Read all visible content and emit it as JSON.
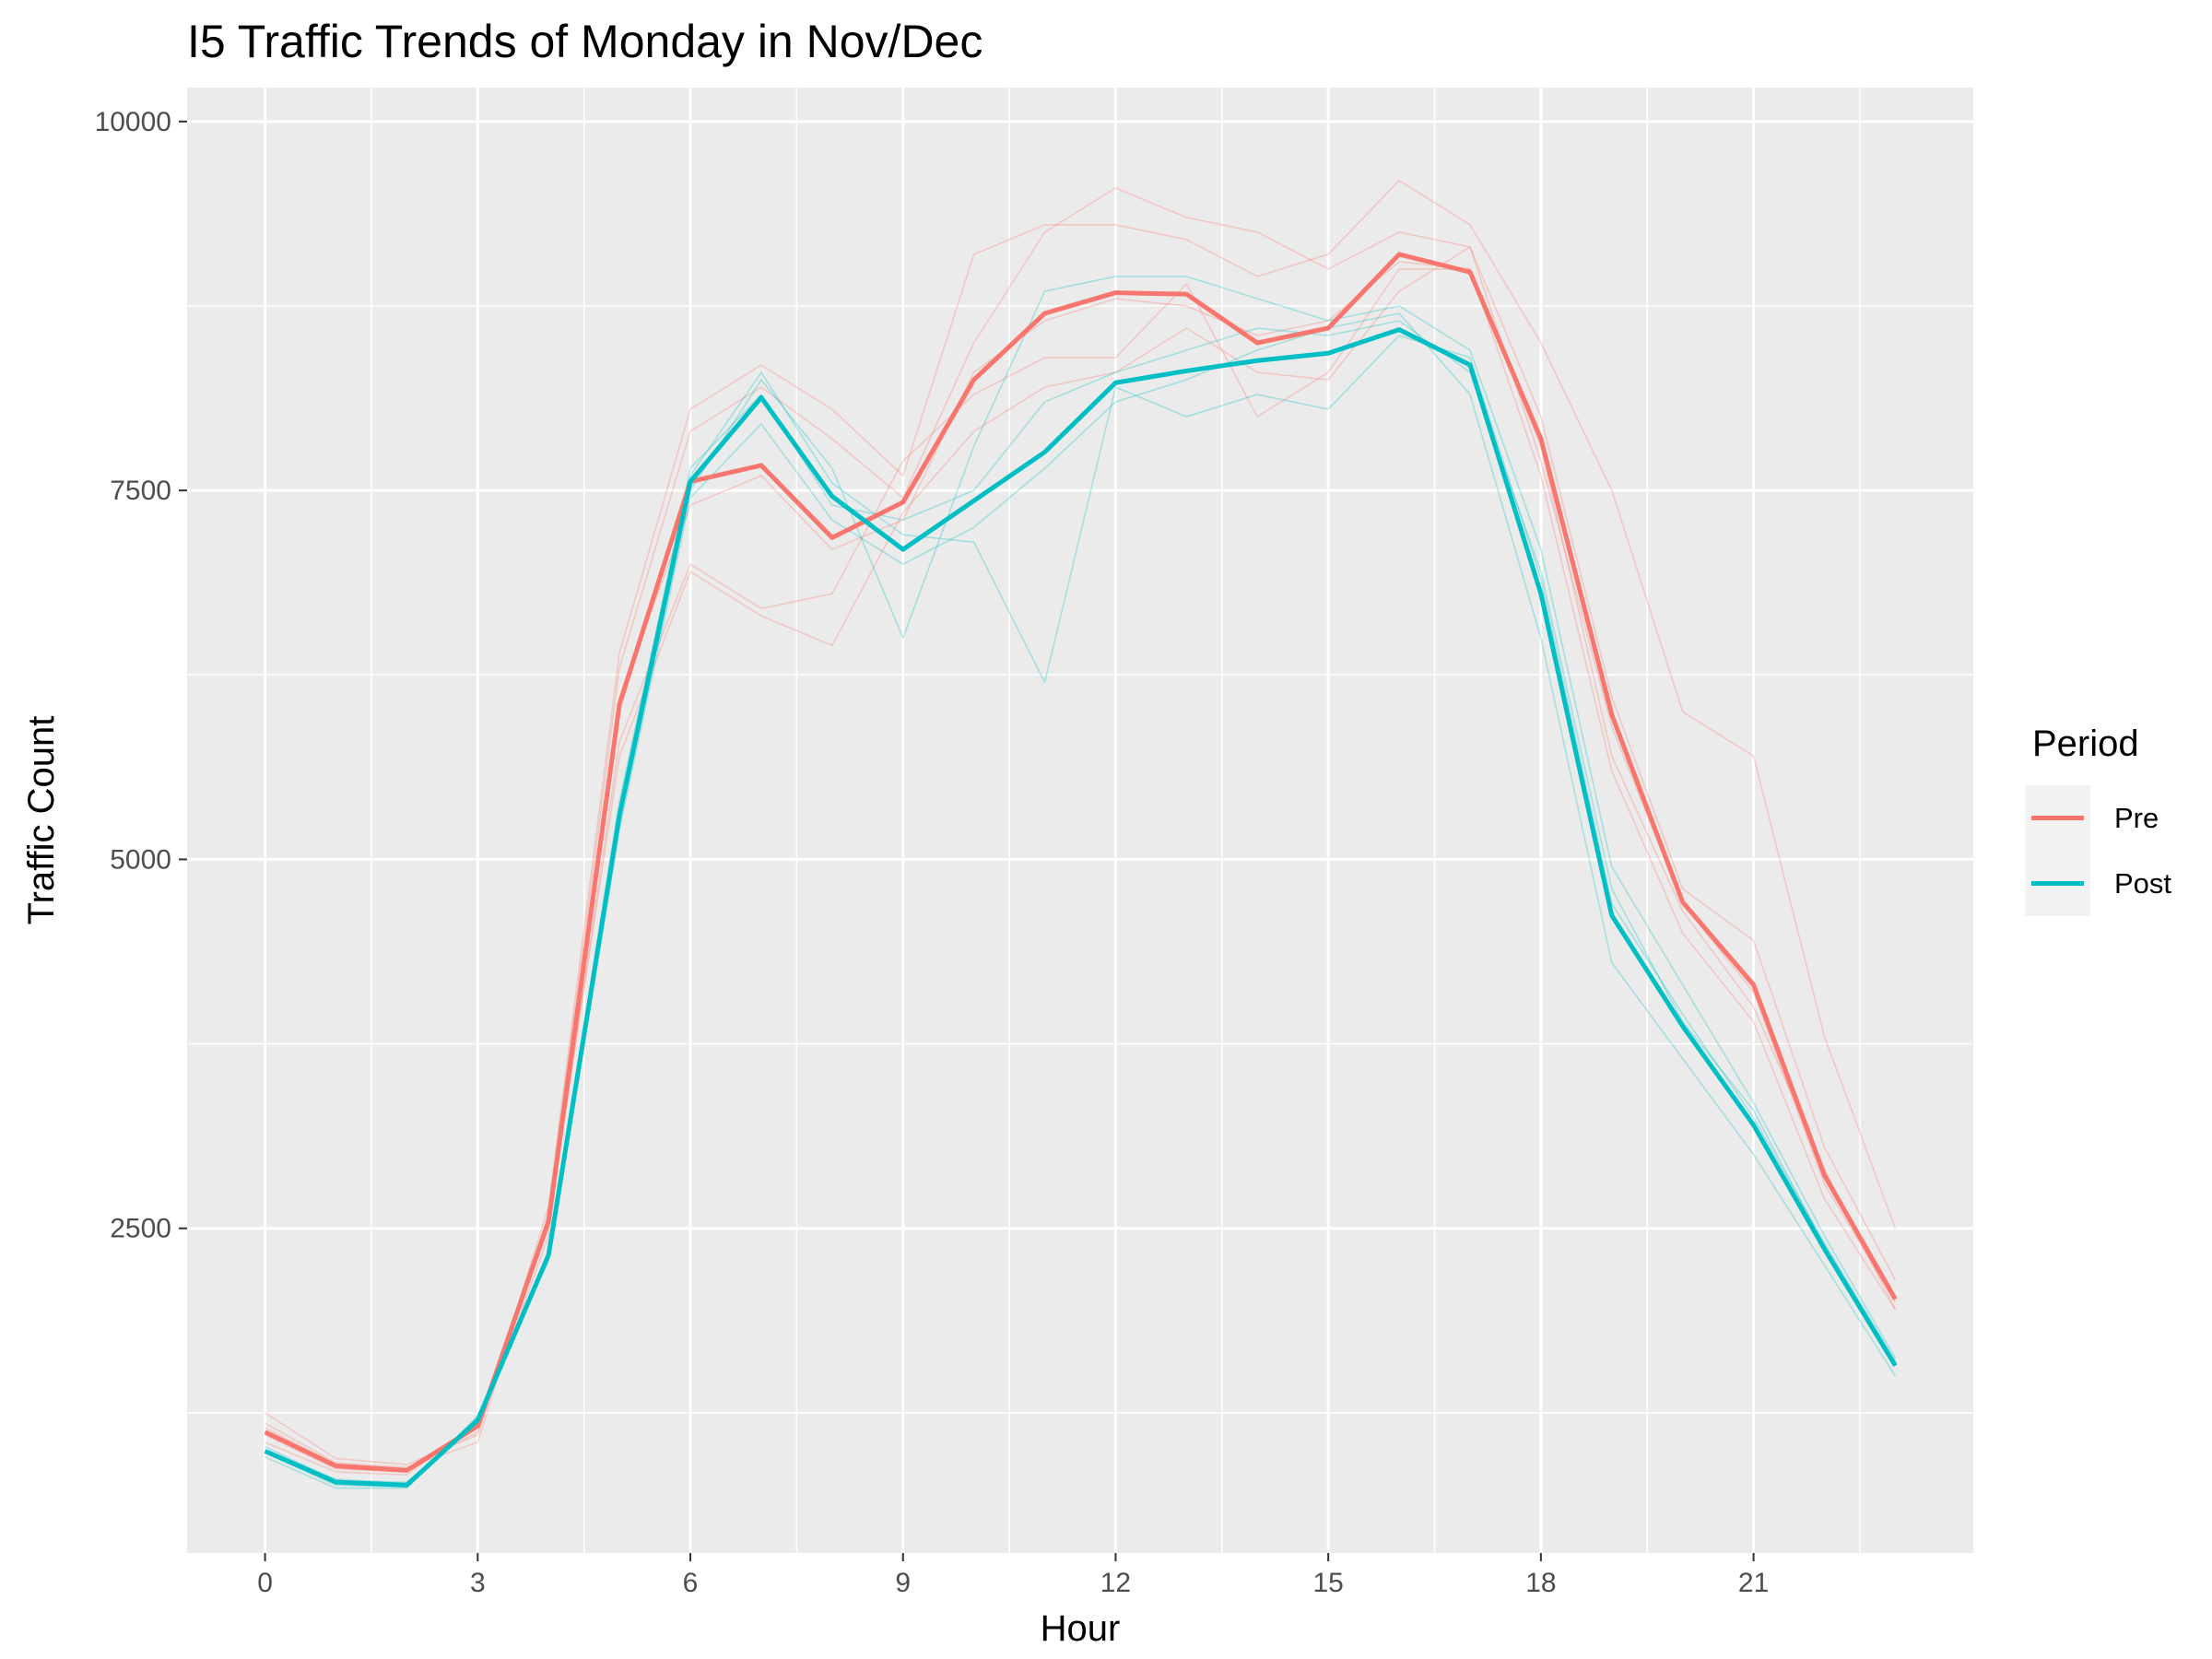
{
  "chart_data": {
    "type": "line",
    "title": "I5 Traffic Trends of Monday in Nov/Dec",
    "xlabel": "Hour",
    "ylabel": "Traffic Count",
    "xlim": [
      -1.1,
      24.1
    ],
    "ylim": [
      300,
      10230
    ],
    "x_ticks": [
      0,
      3,
      6,
      9,
      12,
      15,
      18,
      21
    ],
    "x_tick_labels": [
      "0",
      "3",
      "6",
      "9",
      "12",
      "15",
      "18",
      "21"
    ],
    "y_ticks": [
      2500,
      5000,
      7500,
      10000
    ],
    "y_tick_labels": [
      "2500",
      "5000",
      "7500",
      "10000"
    ],
    "grid": true,
    "legend": {
      "title": "Period",
      "position": "right"
    },
    "x": [
      0,
      1,
      2,
      3,
      4,
      5,
      6,
      7,
      8,
      9,
      10,
      11,
      12,
      13,
      14,
      15,
      16,
      17,
      18,
      19,
      20,
      21,
      22,
      23
    ],
    "series": [
      {
        "name": "Pre",
        "color": "#F8766D",
        "values": [
          1120,
          890,
          860,
          1160,
          2550,
          6050,
          7560,
          7670,
          7180,
          7420,
          8250,
          8700,
          8840,
          8830,
          8500,
          8600,
          9100,
          8980,
          7850,
          5980,
          4710,
          4150,
          2860,
          2020
        ]
      },
      {
        "name": "Post",
        "color": "#00BFC4",
        "values": [
          990,
          780,
          760,
          1200,
          2320,
          5300,
          7560,
          8130,
          7460,
          7100,
          7430,
          7760,
          8230,
          8310,
          8380,
          8430,
          8590,
          8350,
          6800,
          4620,
          3870,
          3200,
          2360,
          1570
        ]
      }
    ],
    "background_traces": [
      {
        "period": "Pre",
        "values": [
          1250,
          940,
          900,
          1100,
          2650,
          6400,
          8050,
          8350,
          8050,
          7600,
          9100,
          9300,
          9300,
          9200,
          8950,
          9100,
          9600,
          9300,
          8500,
          7500,
          6000,
          5700,
          3800,
          2500
        ]
      },
      {
        "period": "Pre",
        "values": [
          1180,
          910,
          880,
          1050,
          2600,
          6300,
          7900,
          8200,
          7850,
          7450,
          8500,
          9250,
          9550,
          9350,
          9250,
          9000,
          9250,
          9150,
          8000,
          6100,
          4800,
          4450,
          3050,
          2150
        ]
      },
      {
        "period": "Pre",
        "values": [
          1050,
          850,
          830,
          1180,
          2500,
          5800,
          7000,
          6700,
          6800,
          7700,
          8150,
          8400,
          8400,
          8900,
          8000,
          8300,
          9000,
          9000,
          7600,
          5600,
          4500,
          3900,
          2700,
          1950
        ]
      },
      {
        "period": "Pre",
        "values": [
          1100,
          870,
          850,
          1150,
          2550,
          5700,
          6950,
          6650,
          6450,
          7350,
          7900,
          8200,
          8300,
          8600,
          8300,
          8250,
          8850,
          9150,
          7700,
          5900,
          4700,
          4100,
          2800,
          2000
        ]
      },
      {
        "period": "Pre",
        "values": [
          1150,
          900,
          870,
          1120,
          2450,
          6100,
          7400,
          7600,
          7100,
          7300,
          8300,
          8650,
          8800,
          8750,
          8550,
          8650,
          9050,
          9000,
          7800,
          5700,
          4650,
          4000,
          2900,
          1950
        ]
      },
      {
        "period": "Post",
        "values": [
          980,
          760,
          750,
          1220,
          2300,
          5250,
          7500,
          8250,
          7650,
          6500,
          7800,
          8850,
          8950,
          8950,
          8800,
          8650,
          8750,
          8450,
          7100,
          4950,
          4150,
          3350,
          2450,
          1620
        ]
      },
      {
        "period": "Post",
        "values": [
          1000,
          800,
          770,
          1180,
          2350,
          5400,
          7600,
          8300,
          7550,
          7200,
          7150,
          6200,
          8200,
          8000,
          8150,
          8050,
          8550,
          8400,
          6900,
          4700,
          3950,
          3250,
          2400,
          1600
        ]
      },
      {
        "period": "Post",
        "values": [
          950,
          740,
          740,
          1230,
          2280,
          5200,
          7450,
          7950,
          7300,
          7000,
          7250,
          7650,
          8100,
          8250,
          8450,
          8600,
          8700,
          8150,
          6500,
          4300,
          3650,
          3000,
          2250,
          1500
        ]
      },
      {
        "period": "Post",
        "values": [
          1020,
          790,
          780,
          1190,
          2340,
          5350,
          7650,
          8150,
          7400,
          7300,
          7500,
          8100,
          8300,
          8450,
          8600,
          8550,
          8650,
          8300,
          6950,
          4800,
          3900,
          3300,
          2380,
          1580
        ]
      }
    ]
  }
}
